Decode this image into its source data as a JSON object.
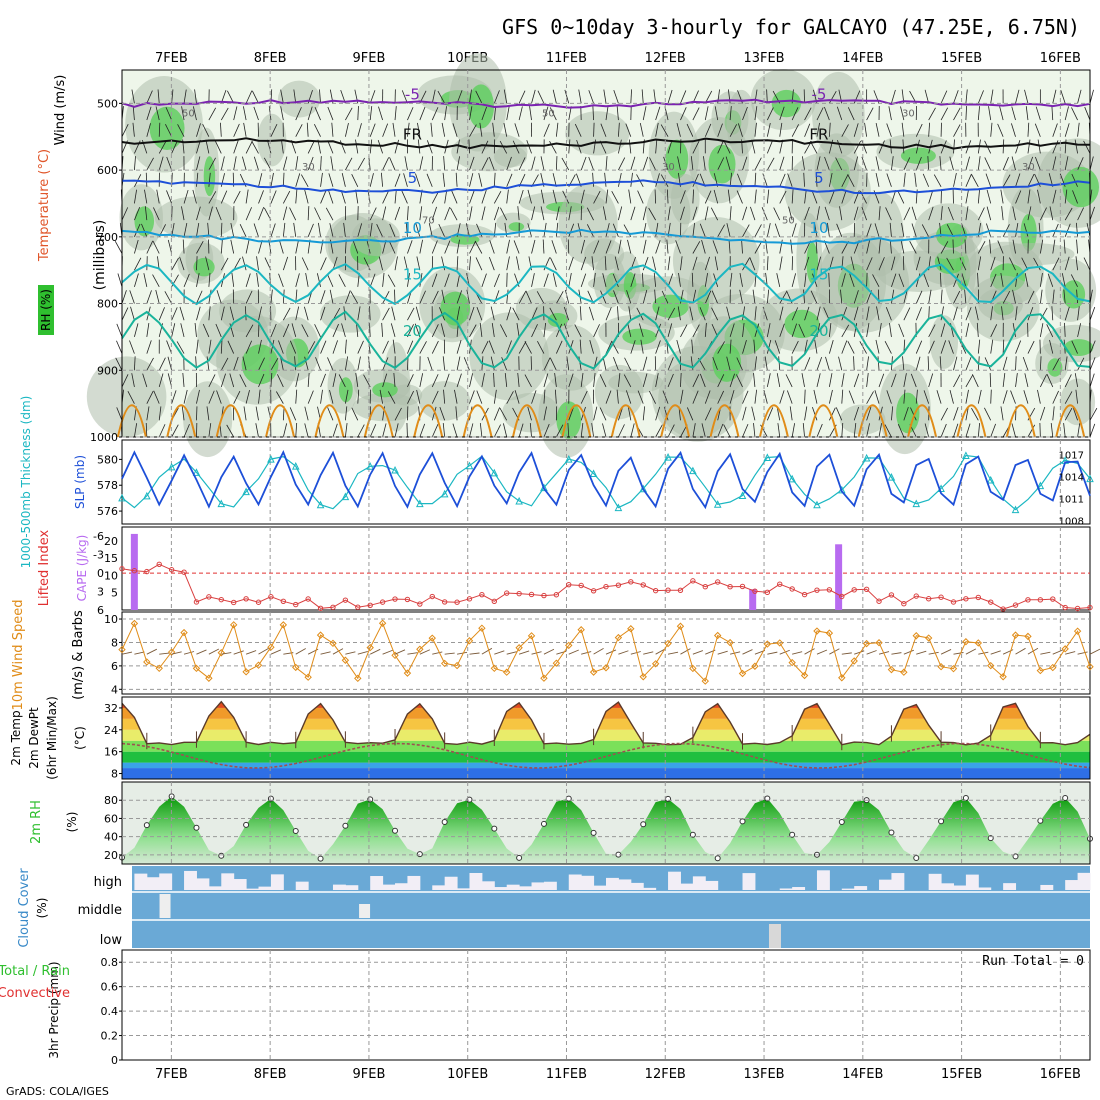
{
  "title": "GFS 0~10day 3-hourly for GALCAYO (47.25E, 6.75N)",
  "credit": "GrADS: COLA/IGES",
  "run_total": "Run Total = 0",
  "colors": {
    "purple": "#7a22b0",
    "black": "#111111",
    "blue": "#1d4fd8",
    "lightblue": "#159ad6",
    "cyan": "#1bb7c2",
    "teal": "#19b39a",
    "orange": "#e08c18",
    "green": "#2fbf2f",
    "cloud": "#6aa9d6",
    "rh_dark": "#8ea48e"
  },
  "chart_data": [
    {
      "type": "heatmap",
      "panel": "upper-air",
      "ylabel_lines": [
        "Wind (m/s)",
        "Temperature (°C)",
        "RH (%)"
      ],
      "ylabel_right": "(millibars)",
      "date_labels": [
        "7FEB",
        "8FEB",
        "9FEB",
        "10FEB",
        "11FEB",
        "12FEB",
        "13FEB",
        "14FEB",
        "15FEB",
        "16FEB"
      ],
      "x_range_days": [
        6.5,
        16.3
      ],
      "y_ticks": [
        500,
        600,
        700,
        800,
        900,
        1000
      ],
      "ylim": [
        1000,
        450
      ],
      "isotherms": [
        {
          "label": "-5",
          "color": "#7a22b0",
          "base": 500,
          "amp": 6
        },
        {
          "label": "FR",
          "color": "#111111",
          "base": 560,
          "amp": 8
        },
        {
          "label": "5",
          "color": "#1d4fd8",
          "base": 625,
          "amp": 12
        },
        {
          "label": "10",
          "color": "#159ad6",
          "base": 700,
          "amp": 14
        },
        {
          "label": "15",
          "color": "#1bb7c2",
          "base": 770,
          "amp": 28
        },
        {
          "label": "20",
          "color": "#19b39a",
          "base": 855,
          "amp": 40
        }
      ],
      "rh_contour_labels": [
        "50",
        "30",
        "70",
        "50",
        "30",
        "50",
        "30",
        "30"
      ]
    },
    {
      "type": "line",
      "panel": "thickness-slp",
      "ylabel_left": "1000-500mb Thickness (dm)",
      "ylabel_right": "SLP (mb)",
      "left_ticks": [
        580,
        578,
        576
      ],
      "right_ticks": [
        1017,
        1014,
        1011,
        1008
      ],
      "series": [
        {
          "name": "Thickness",
          "color": "#1bb7c2",
          "amp": 1.8,
          "base": 578.2,
          "unit": "dm"
        },
        {
          "name": "SLP",
          "color": "#1d4fd8",
          "amp": 3.6,
          "base": 1013.5,
          "unit": "mb"
        }
      ]
    },
    {
      "type": "bar",
      "panel": "cape-li",
      "ylabel_left": "Lifted Index",
      "ylabel_right": "CAPE (J/kg)",
      "li_ticks": [
        "-6",
        "-3",
        "0",
        "3",
        "6"
      ],
      "cape_ticks": [
        "20",
        "15",
        "10",
        "5"
      ],
      "cape_bars": [
        {
          "x": 6.62,
          "value": 22
        },
        {
          "x": 12.88,
          "value": 6
        },
        {
          "x": 13.75,
          "value": 19
        }
      ]
    },
    {
      "type": "line",
      "panel": "wind10m",
      "ylabel_left": "10m Wind Speed",
      "ylabel_right": "(m/s) & Barbs",
      "ylim": [
        4,
        10
      ],
      "y_ticks": [
        4,
        6,
        8,
        10
      ],
      "series": [
        {
          "name": "10m wind speed",
          "color": "#e08c18"
        }
      ]
    },
    {
      "type": "area",
      "panel": "temperature",
      "ylabel_lines": [
        "2m Temp",
        "2m DewPt",
        "(6hr Min/Max)"
      ],
      "ylabel_right": "(°C)",
      "ylim": [
        6,
        36
      ],
      "y_ticks": [
        8,
        16,
        24,
        32
      ],
      "temp_range": [
        19,
        34
      ],
      "dewpt_range": [
        10,
        19
      ]
    },
    {
      "type": "area",
      "panel": "rh2m",
      "ylabel_left": "2m RH",
      "ylabel_right": "(%)",
      "ylim": [
        10,
        100
      ],
      "y_ticks": [
        20,
        40,
        60,
        80
      ]
    },
    {
      "type": "bar",
      "panel": "cloud",
      "ylabel_left": "Cloud Cover",
      "ylabel_right": "(%)",
      "layers": [
        "high",
        "middle",
        "low"
      ]
    },
    {
      "type": "bar",
      "panel": "precip",
      "ylabel_left_lines": [
        "Total / Rain",
        "Convective"
      ],
      "ylabel_right": "3hr Precip (mm)",
      "ylim": [
        0,
        0.9
      ],
      "y_ticks": [
        "0",
        "0.2",
        "0.4",
        "0.6",
        "0.8"
      ],
      "values": []
    }
  ]
}
